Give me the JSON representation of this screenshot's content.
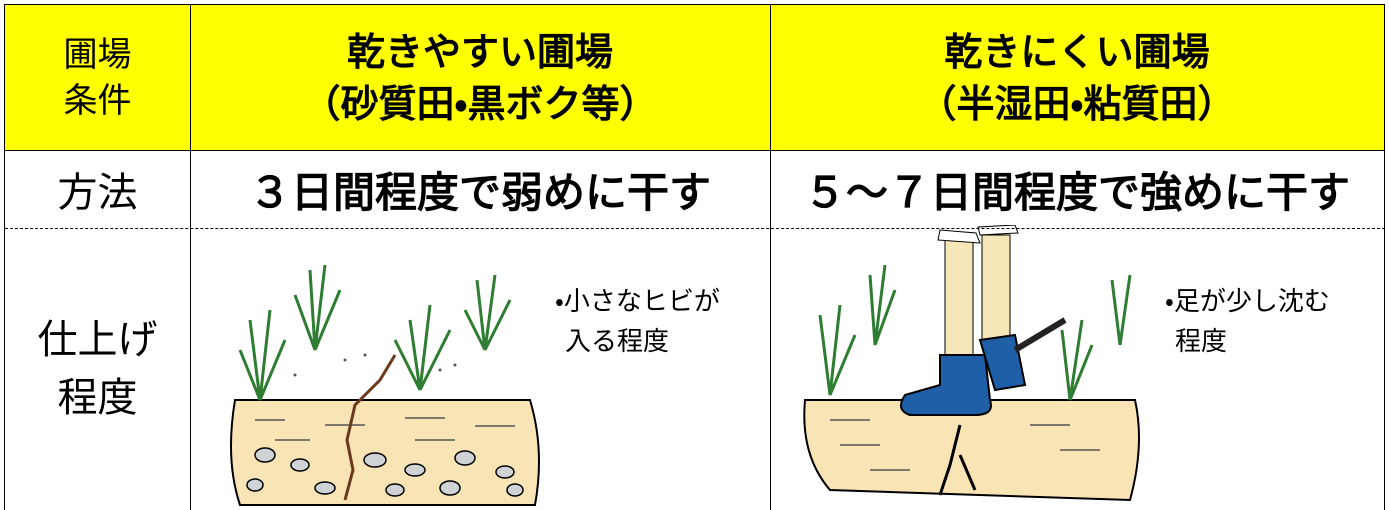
{
  "table": {
    "header": [
      [
        "圃場",
        "条件"
      ],
      [
        "乾きやすい圃場",
        "（砂質田・黒ボク等）"
      ],
      [
        "乾きにくい圃場",
        "（半湿田・粘質田）"
      ]
    ],
    "rows": [
      {
        "label": [
          "方法"
        ],
        "cells": [
          [
            "３日間程度で弱めに干す"
          ],
          [
            "５～７日間程度で強めに干す"
          ]
        ]
      },
      {
        "label": [
          "仕上げ",
          "程度"
        ],
        "cells": [
          [
            "・小さなヒビが",
            "入る程度"
          ],
          [
            "・足が少し沈む",
            "程度"
          ]
        ]
      }
    ]
  }
}
